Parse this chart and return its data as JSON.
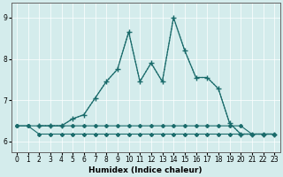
{
  "xlabel": "Humidex (Indice chaleur)",
  "xlim": [
    -0.5,
    23.5
  ],
  "ylim": [
    5.75,
    9.35
  ],
  "yticks": [
    6,
    7,
    8,
    9
  ],
  "xticks": [
    0,
    1,
    2,
    3,
    4,
    5,
    6,
    7,
    8,
    9,
    10,
    11,
    12,
    13,
    14,
    15,
    16,
    17,
    18,
    19,
    20,
    21,
    22,
    23
  ],
  "bg_color": "#d4ecec",
  "line_color": "#1a6b6b",
  "lines": [
    {
      "x": [
        0,
        1,
        2,
        3,
        4,
        5,
        6,
        7,
        8,
        9,
        10,
        11,
        12,
        13,
        14,
        15,
        16,
        17,
        18,
        19,
        20,
        21,
        22,
        23
      ],
      "y": [
        6.38,
        6.38,
        6.38,
        6.38,
        6.38,
        6.38,
        6.38,
        6.38,
        6.38,
        6.38,
        6.38,
        6.38,
        6.38,
        6.38,
        6.38,
        6.38,
        6.38,
        6.38,
        6.38,
        6.38,
        6.38,
        6.18,
        6.18,
        6.18
      ],
      "style": "solid",
      "marker": "D",
      "ms": 2.0,
      "lw": 0.8
    },
    {
      "x": [
        0,
        1,
        2,
        3,
        4,
        5,
        6,
        7,
        8,
        9,
        10,
        11,
        12,
        13,
        14,
        15,
        16,
        17,
        18,
        19,
        20,
        21,
        22,
        23
      ],
      "y": [
        6.38,
        6.38,
        6.18,
        6.18,
        6.18,
        6.18,
        6.18,
        6.18,
        6.18,
        6.18,
        6.18,
        6.18,
        6.18,
        6.18,
        6.18,
        6.18,
        6.18,
        6.18,
        6.18,
        6.18,
        6.18,
        6.18,
        6.18,
        6.18
      ],
      "style": "solid",
      "marker": "D",
      "ms": 2.0,
      "lw": 0.8
    },
    {
      "x": [
        2,
        3,
        4,
        5,
        6,
        7,
        8,
        9,
        10,
        11,
        12,
        13,
        14,
        15,
        16,
        17,
        18,
        19,
        20,
        21,
        22,
        23
      ],
      "y": [
        6.38,
        6.38,
        6.38,
        6.55,
        6.65,
        7.05,
        7.45,
        7.75,
        8.65,
        7.45,
        7.9,
        7.45,
        9.0,
        8.2,
        7.55,
        7.55,
        7.28,
        6.45,
        6.18,
        6.18,
        6.18,
        6.18
      ],
      "style": "solid",
      "marker": "+",
      "ms": 4.0,
      "lw": 0.9
    },
    {
      "x": [
        2,
        3,
        4,
        5,
        6,
        7,
        8,
        9,
        10,
        11,
        12,
        13,
        14,
        15,
        16,
        17,
        18,
        19,
        20,
        21,
        22,
        23
      ],
      "y": [
        6.38,
        6.38,
        6.38,
        6.55,
        6.65,
        7.05,
        7.45,
        7.75,
        8.65,
        7.45,
        7.9,
        7.45,
        9.0,
        8.2,
        7.55,
        7.55,
        7.28,
        6.45,
        6.18,
        6.18,
        6.18,
        6.18
      ],
      "style": "dotted",
      "marker": null,
      "ms": 0,
      "lw": 0.9
    }
  ]
}
